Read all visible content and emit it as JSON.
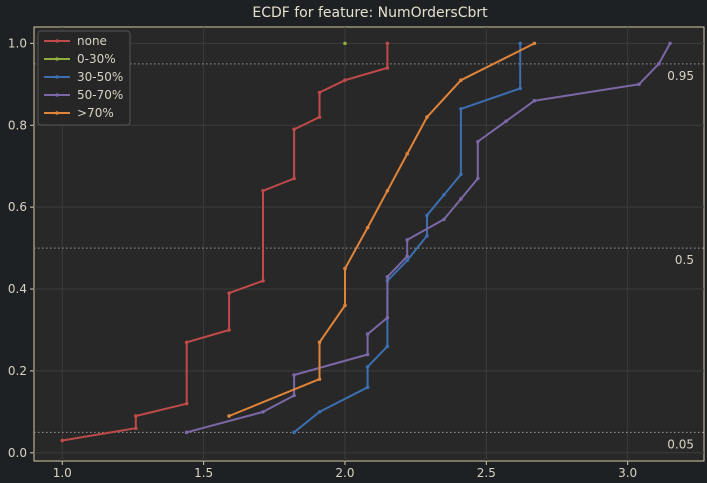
{
  "chart_data": {
    "type": "line",
    "step": true,
    "title": "ECDF for feature: NumOrdersCbrt",
    "xlabel": "",
    "ylabel": "",
    "xlim": [
      0.9,
      3.27
    ],
    "ylim": [
      -0.02,
      1.04
    ],
    "xticks": [
      1.0,
      1.5,
      2.0,
      2.5,
      3.0
    ],
    "xtick_labels": [
      "1.0",
      "1.5",
      "2.0",
      "2.5",
      "3.0"
    ],
    "yticks": [
      0.0,
      0.2,
      0.4,
      0.6,
      0.8,
      1.0
    ],
    "ytick_labels": [
      "0.0",
      "0.2",
      "0.4",
      "0.6",
      "0.8",
      "1.0"
    ],
    "grid": true,
    "legend_position": "top-left",
    "reference_lines": [
      {
        "y": 0.95,
        "label": "0.95"
      },
      {
        "y": 0.5,
        "label": "0.5"
      },
      {
        "y": 0.05,
        "label": "0.05"
      }
    ],
    "series": [
      {
        "name": "none",
        "color": "#c04a4a",
        "points": [
          [
            1.0,
            0.03
          ],
          [
            1.26,
            0.06
          ],
          [
            1.26,
            0.09
          ],
          [
            1.44,
            0.12
          ],
          [
            1.44,
            0.27
          ],
          [
            1.59,
            0.3
          ],
          [
            1.59,
            0.39
          ],
          [
            1.71,
            0.42
          ],
          [
            1.71,
            0.64
          ],
          [
            1.82,
            0.67
          ],
          [
            1.82,
            0.79
          ],
          [
            1.91,
            0.82
          ],
          [
            1.91,
            0.88
          ],
          [
            2.0,
            0.91
          ],
          [
            2.15,
            0.94
          ],
          [
            2.15,
            1.0
          ]
        ]
      },
      {
        "name": "0-30%",
        "color": "#8fae3c",
        "points": [
          [
            2.0,
            1.0
          ]
        ]
      },
      {
        "name": "30-50%",
        "color": "#3d6fb0",
        "points": [
          [
            1.82,
            0.05
          ],
          [
            1.91,
            0.1
          ],
          [
            2.08,
            0.16
          ],
          [
            2.08,
            0.21
          ],
          [
            2.15,
            0.26
          ],
          [
            2.15,
            0.42
          ],
          [
            2.22,
            0.47
          ],
          [
            2.29,
            0.53
          ],
          [
            2.29,
            0.58
          ],
          [
            2.35,
            0.63
          ],
          [
            2.41,
            0.68
          ],
          [
            2.41,
            0.84
          ],
          [
            2.62,
            0.89
          ],
          [
            2.62,
            1.0
          ]
        ]
      },
      {
        "name": "50-70%",
        "color": "#7b68a6",
        "points": [
          [
            1.44,
            0.05
          ],
          [
            1.71,
            0.1
          ],
          [
            1.82,
            0.14
          ],
          [
            1.82,
            0.19
          ],
          [
            2.08,
            0.24
          ],
          [
            2.08,
            0.29
          ],
          [
            2.15,
            0.33
          ],
          [
            2.15,
            0.43
          ],
          [
            2.22,
            0.48
          ],
          [
            2.22,
            0.52
          ],
          [
            2.35,
            0.57
          ],
          [
            2.41,
            0.62
          ],
          [
            2.47,
            0.67
          ],
          [
            2.47,
            0.76
          ],
          [
            2.57,
            0.81
          ],
          [
            2.67,
            0.86
          ],
          [
            3.04,
            0.9
          ],
          [
            3.11,
            0.95
          ],
          [
            3.15,
            1.0
          ]
        ]
      },
      {
        "name": ">70%",
        "color": "#e0843a",
        "points": [
          [
            1.59,
            0.09
          ],
          [
            1.91,
            0.18
          ],
          [
            1.91,
            0.27
          ],
          [
            2.0,
            0.36
          ],
          [
            2.0,
            0.45
          ],
          [
            2.08,
            0.55
          ],
          [
            2.15,
            0.64
          ],
          [
            2.22,
            0.73
          ],
          [
            2.29,
            0.82
          ],
          [
            2.41,
            0.91
          ],
          [
            2.67,
            1.0
          ]
        ]
      }
    ]
  }
}
